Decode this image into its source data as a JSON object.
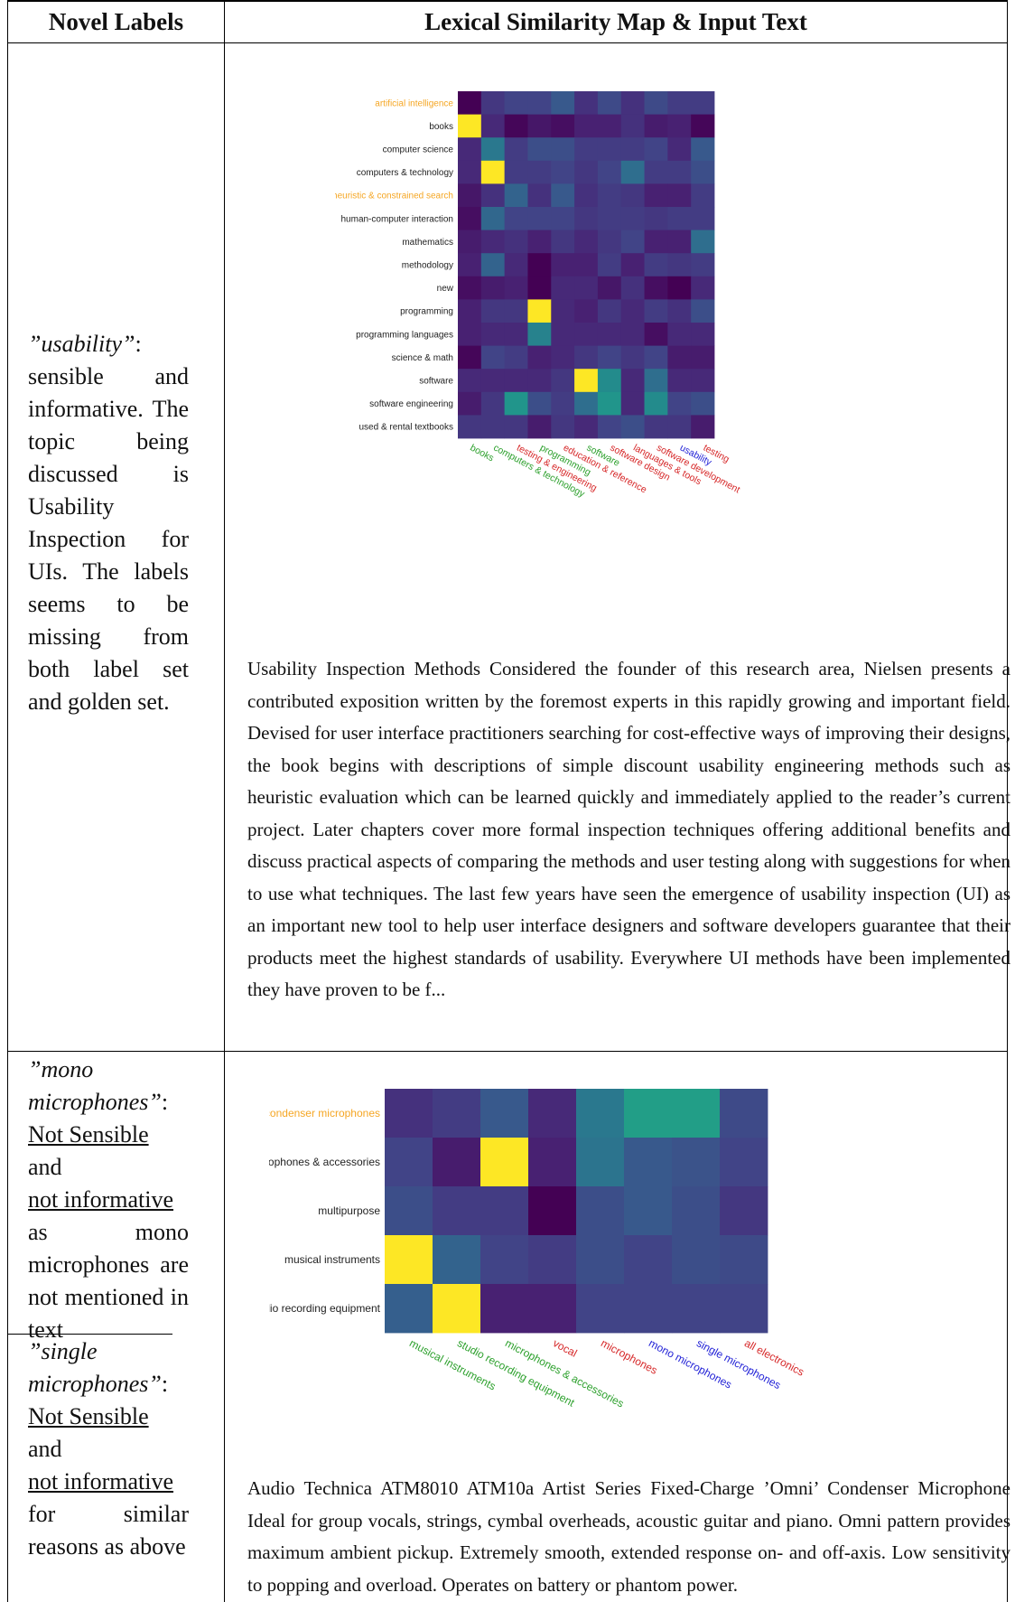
{
  "header": {
    "left": "Novel Labels",
    "right": "Lexical Similarity Map & Input Text"
  },
  "rows": [
    {
      "left_intro": "”usability”",
      "left_rest": ": sensible and informative. The topic being discussed is Usability Inspection for UIs. The labels seems to be missing from both label set and golden set.",
      "chart_data": {
        "type": "heatmap",
        "y_labels": [
          {
            "text": "artificial intelligence",
            "color": "#f5a623"
          },
          {
            "text": "books",
            "color": "#222222"
          },
          {
            "text": "computer science",
            "color": "#222222"
          },
          {
            "text": "computers & technology",
            "color": "#222222"
          },
          {
            "text": "heuristic & constrained search",
            "color": "#f5a623"
          },
          {
            "text": "human-computer interaction",
            "color": "#222222"
          },
          {
            "text": "mathematics",
            "color": "#222222"
          },
          {
            "text": "methodology",
            "color": "#222222"
          },
          {
            "text": "new",
            "color": "#222222"
          },
          {
            "text": "programming",
            "color": "#222222"
          },
          {
            "text": "programming languages",
            "color": "#222222"
          },
          {
            "text": "science & math",
            "color": "#222222"
          },
          {
            "text": "software",
            "color": "#222222"
          },
          {
            "text": "software engineering",
            "color": "#222222"
          },
          {
            "text": "used & rental textbooks",
            "color": "#222222"
          }
        ],
        "x_labels": [
          {
            "text": "books",
            "color": "#2ca02c"
          },
          {
            "text": "computers & technology",
            "color": "#2ca02c"
          },
          {
            "text": "testing & engineering",
            "color": "#d62728"
          },
          {
            "text": "programming",
            "color": "#2ca02c"
          },
          {
            "text": "education & reference",
            "color": "#d62728"
          },
          {
            "text": "software",
            "color": "#2ca02c"
          },
          {
            "text": "software design",
            "color": "#d62728"
          },
          {
            "text": "languages & tools",
            "color": "#d62728"
          },
          {
            "text": "software development",
            "color": "#d62728"
          },
          {
            "text": "usability",
            "color": "#1f1fd6"
          },
          {
            "text": "testing",
            "color": "#d62728"
          }
        ],
        "values": [
          [
            0.0,
            0.2,
            0.25,
            0.25,
            0.35,
            0.18,
            0.28,
            0.18,
            0.28,
            0.22,
            0.22
          ],
          [
            1.0,
            0.15,
            0.02,
            0.08,
            0.05,
            0.12,
            0.12,
            0.18,
            0.1,
            0.12,
            0.02
          ],
          [
            0.15,
            0.5,
            0.22,
            0.3,
            0.3,
            0.22,
            0.22,
            0.22,
            0.25,
            0.15,
            0.35
          ],
          [
            0.15,
            1.0,
            0.22,
            0.22,
            0.25,
            0.2,
            0.25,
            0.45,
            0.22,
            0.22,
            0.3
          ],
          [
            0.08,
            0.18,
            0.4,
            0.18,
            0.35,
            0.18,
            0.22,
            0.2,
            0.12,
            0.12,
            0.22
          ],
          [
            0.05,
            0.42,
            0.25,
            0.25,
            0.25,
            0.2,
            0.22,
            0.22,
            0.2,
            0.22,
            0.22
          ],
          [
            0.1,
            0.15,
            0.18,
            0.12,
            0.2,
            0.15,
            0.2,
            0.25,
            0.12,
            0.12,
            0.45
          ],
          [
            0.12,
            0.4,
            0.15,
            0.0,
            0.12,
            0.12,
            0.22,
            0.12,
            0.22,
            0.2,
            0.22
          ],
          [
            0.05,
            0.1,
            0.12,
            0.0,
            0.15,
            0.15,
            0.08,
            0.18,
            0.05,
            0.0,
            0.15
          ],
          [
            0.12,
            0.2,
            0.2,
            1.0,
            0.15,
            0.12,
            0.2,
            0.15,
            0.22,
            0.18,
            0.3
          ],
          [
            0.12,
            0.15,
            0.15,
            0.55,
            0.15,
            0.15,
            0.15,
            0.15,
            0.05,
            0.15,
            0.15
          ],
          [
            0.02,
            0.25,
            0.22,
            0.12,
            0.15,
            0.2,
            0.25,
            0.2,
            0.25,
            0.1,
            0.1
          ],
          [
            0.15,
            0.15,
            0.15,
            0.15,
            0.2,
            1.0,
            0.6,
            0.15,
            0.45,
            0.15,
            0.15
          ],
          [
            0.1,
            0.2,
            0.65,
            0.3,
            0.22,
            0.45,
            0.65,
            0.15,
            0.6,
            0.25,
            0.3
          ],
          [
            0.2,
            0.2,
            0.2,
            0.1,
            0.2,
            0.15,
            0.25,
            0.3,
            0.2,
            0.2,
            0.1
          ]
        ]
      },
      "body": "Usability Inspection Methods Considered the founder of this research area, Nielsen presents a contributed exposition written by the foremost experts in this rapidly growing and important field. Devised for user interface practitioners searching for cost-effective ways of improving their designs, the book begins with descriptions of simple discount usability engineering methods such as heuristic evaluation which can be learned quickly and immediately applied to the reader’s current project. Later chapters cover more formal inspection techniques offering additional benefits and discuss practical aspects of comparing the methods and user testing along with suggestions for when to use what techniques. The last few years have seen the emergence of usability inspection (UI) as an important new tool to help user interface designers and software developers guarantee that their products meet the highest standards of usability. Everywhere UI methods have been implemented they have proven to be f..."
    },
    {
      "left_a_intro": "”mono microphones”",
      "left_a_colon": ":",
      "left_a_q1": "Not Sensible",
      "left_a_and": "and",
      "left_a_q2": "not informative",
      "left_a_rest": "as mono microphones are not mentioned in text",
      "left_b_intro": "”single microphones”",
      "left_b_colon": ":",
      "left_b_q1": "Not Sensible",
      "left_b_and": "and",
      "left_b_q2": "not informative",
      "left_b_rest": "for similar reasons as above",
      "chart_data": {
        "type": "heatmap",
        "y_labels": [
          {
            "text": "condenser microphones",
            "color": "#f5a623"
          },
          {
            "text": "microphones & accessories",
            "color": "#222222"
          },
          {
            "text": "multipurpose",
            "color": "#222222"
          },
          {
            "text": "musical instruments",
            "color": "#222222"
          },
          {
            "text": "studio recording equipment",
            "color": "#222222"
          }
        ],
        "x_labels": [
          {
            "text": "musical instruments",
            "color": "#2ca02c"
          },
          {
            "text": "studio recording equipment",
            "color": "#2ca02c"
          },
          {
            "text": "microphones & accessories",
            "color": "#2ca02c"
          },
          {
            "text": "vocal",
            "color": "#d62728"
          },
          {
            "text": "microphones",
            "color": "#d62728"
          },
          {
            "text": "mono microphones",
            "color": "#1f1fd6"
          },
          {
            "text": "single microphones",
            "color": "#1f1fd6"
          },
          {
            "text": "all electronics",
            "color": "#d62728"
          }
        ],
        "values": [
          [
            0.18,
            0.22,
            0.35,
            0.15,
            0.5,
            0.7,
            0.7,
            0.28
          ],
          [
            0.25,
            0.1,
            1.0,
            0.12,
            0.48,
            0.35,
            0.32,
            0.25
          ],
          [
            0.3,
            0.22,
            0.22,
            0.0,
            0.3,
            0.35,
            0.3,
            0.2
          ],
          [
            1.0,
            0.4,
            0.25,
            0.22,
            0.3,
            0.25,
            0.3,
            0.28
          ],
          [
            0.38,
            1.0,
            0.12,
            0.12,
            0.25,
            0.25,
            0.25,
            0.25
          ]
        ]
      },
      "body": "Audio Technica ATM8010 ATM10a Artist Series Fixed-Charge ’Omni’ Condenser Microphone Ideal for group vocals, strings, cymbal overheads, acoustic guitar and piano. Omni pattern provides maximum ambient pickup. Extremely smooth, extended response on- and off-axis. Low sensitivity to popping and overload. Operates on battery or phantom power."
    }
  ]
}
